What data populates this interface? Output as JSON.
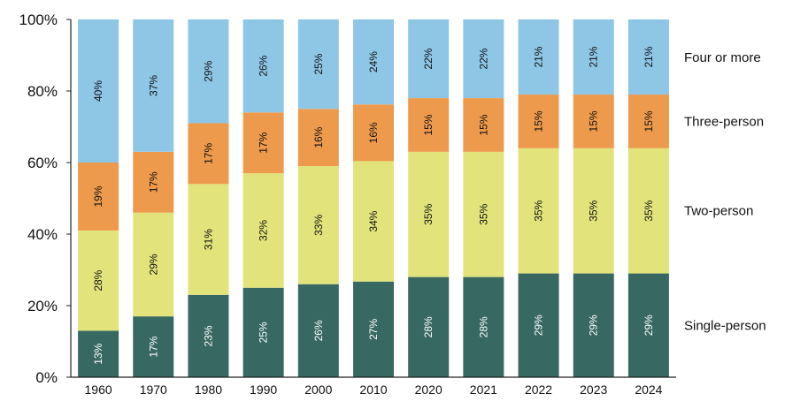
{
  "chart_data": {
    "type": "bar",
    "stacked": true,
    "categories": [
      "1960",
      "1970",
      "1980",
      "1990",
      "2000",
      "2010",
      "2020",
      "2021",
      "2022",
      "2023",
      "2024"
    ],
    "series": [
      {
        "name": "Single-person",
        "color": "#376861",
        "label_color": "#ffffff",
        "values": [
          13,
          17,
          23,
          25,
          26,
          27,
          28,
          28,
          29,
          29,
          29
        ]
      },
      {
        "name": "Two-person",
        "color": "#e2e37a",
        "label_color": "#111111",
        "values": [
          28,
          29,
          31,
          32,
          33,
          34,
          35,
          35,
          35,
          35,
          35
        ]
      },
      {
        "name": "Three-person",
        "color": "#ee9a4d",
        "label_color": "#111111",
        "values": [
          19,
          17,
          17,
          17,
          16,
          16,
          15,
          15,
          15,
          15,
          15
        ]
      },
      {
        "name": "Four or more",
        "color": "#8ec6e6",
        "label_color": "#111111",
        "values": [
          40,
          37,
          29,
          26,
          25,
          24,
          22,
          22,
          21,
          21,
          21
        ]
      }
    ],
    "data_label_format": "{v}%",
    "yticks": [
      "0%",
      "20%",
      "40%",
      "60%",
      "80%",
      "100%"
    ],
    "ylim": [
      0,
      100
    ],
    "grid": false,
    "legend": "right, labels aligned with top bar segments",
    "title": "",
    "xlabel": "",
    "ylabel": ""
  }
}
